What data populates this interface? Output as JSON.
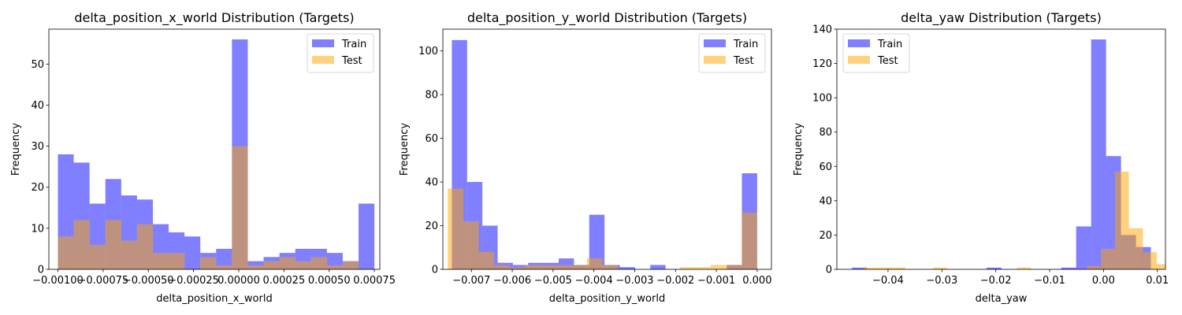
{
  "colors": {
    "train": "#0000ff",
    "test": "#ffa500"
  },
  "chart_data": [
    {
      "type": "histogram",
      "title": "delta_position_x_world Distribution (Targets)",
      "xlabel": "delta_position_x_world",
      "ylabel": "Frequency",
      "xlim": [
        -0.00105,
        0.00078
      ],
      "ylim": [
        0,
        58.5
      ],
      "xticks": [
        -0.001,
        -0.00075,
        -0.0005,
        -0.00025,
        0.0,
        0.00025,
        0.0005,
        0.00075
      ],
      "xticklabels": [
        "−0.00100",
        "−0.00075",
        "−0.00050",
        "−0.00025",
        "0.00000",
        "0.00025",
        "0.00050",
        "0.00075"
      ],
      "yticks": [
        0,
        10,
        20,
        30,
        40,
        50
      ],
      "yticklabels": [
        "0",
        "10",
        "20",
        "30",
        "40",
        "50"
      ],
      "legend": {
        "position": "top-right",
        "entries": [
          "Train",
          "Test"
        ]
      },
      "series": [
        {
          "name": "Train",
          "bin_start": -0.001,
          "bin_width": 8.75e-05,
          "counts": [
            28,
            26,
            16,
            22,
            18,
            17,
            11,
            9,
            8,
            4,
            5,
            56,
            2,
            3,
            4,
            5,
            5,
            4,
            2,
            16
          ]
        },
        {
          "name": "Test",
          "bin_start": -0.001,
          "bin_width": 8.75e-05,
          "counts": [
            8,
            12,
            6,
            12,
            7,
            11,
            4,
            4,
            0,
            3,
            1,
            30,
            1,
            2,
            3,
            2,
            3,
            1,
            2,
            0
          ]
        }
      ]
    },
    {
      "type": "histogram",
      "title": "delta_position_y_world Distribution (Targets)",
      "xlabel": "delta_position_y_world",
      "ylabel": "Frequency",
      "xlim": [
        -0.0077,
        0.00035
      ],
      "ylim": [
        0,
        110
      ],
      "xticks": [
        -0.007,
        -0.006,
        -0.005,
        -0.004,
        -0.003,
        -0.002,
        -0.001,
        0.0
      ],
      "xticklabels": [
        "−0.007",
        "−0.006",
        "−0.005",
        "−0.004",
        "−0.003",
        "−0.002",
        "−0.001",
        "0.000"
      ],
      "yticks": [
        0,
        20,
        40,
        60,
        80,
        100
      ],
      "yticklabels": [
        "0",
        "20",
        "40",
        "60",
        "80",
        "100"
      ],
      "legend": {
        "position": "top-right",
        "entries": [
          "Train",
          "Test"
        ]
      },
      "series": [
        {
          "name": "Train",
          "bin_start": -0.00748,
          "bin_width": 0.000374,
          "counts": [
            105,
            40,
            20,
            3,
            2,
            3,
            3,
            5,
            2,
            25,
            2,
            1,
            0,
            2,
            0,
            0,
            0,
            0,
            2,
            44
          ]
        },
        {
          "name": "Test",
          "bin_start": -0.00758,
          "bin_width": 0.000379,
          "counts": [
            37,
            22,
            8,
            2,
            1,
            2,
            2,
            2,
            2,
            5,
            2,
            0,
            0,
            0,
            0,
            1,
            1,
            2,
            2,
            26
          ]
        }
      ]
    },
    {
      "type": "histogram",
      "title": "delta_yaw Distribution (Targets)",
      "xlabel": "delta_yaw",
      "ylabel": "Frequency",
      "xlim": [
        -0.0495,
        0.0115
      ],
      "ylim": [
        0,
        140
      ],
      "xticks": [
        -0.04,
        -0.03,
        -0.02,
        -0.01,
        0.0,
        0.01
      ],
      "xticklabels": [
        "−0.04",
        "−0.03",
        "−0.02",
        "−0.01",
        "0.00",
        "0.01"
      ],
      "yticks": [
        0,
        20,
        40,
        60,
        80,
        100,
        120,
        140
      ],
      "yticklabels": [
        "0",
        "20",
        "40",
        "60",
        "80",
        "100",
        "120",
        "140"
      ],
      "legend": {
        "position": "top-left",
        "entries": [
          "Train",
          "Test"
        ]
      },
      "series": [
        {
          "name": "Train",
          "bin_start": -0.0467,
          "bin_width": 0.002775,
          "counts": [
            1,
            0,
            0,
            0,
            0,
            0,
            0,
            0,
            0,
            1,
            0,
            0,
            0,
            0,
            1,
            25,
            134,
            66,
            20,
            13
          ]
        },
        {
          "name": "Test",
          "bin_start": -0.0446,
          "bin_width": 0.002595,
          "counts": [
            1,
            1,
            1,
            0,
            0,
            1,
            0,
            0,
            0,
            0,
            0,
            1,
            0,
            0,
            0,
            0,
            2,
            12,
            57,
            24,
            10,
            3
          ]
        }
      ]
    }
  ]
}
